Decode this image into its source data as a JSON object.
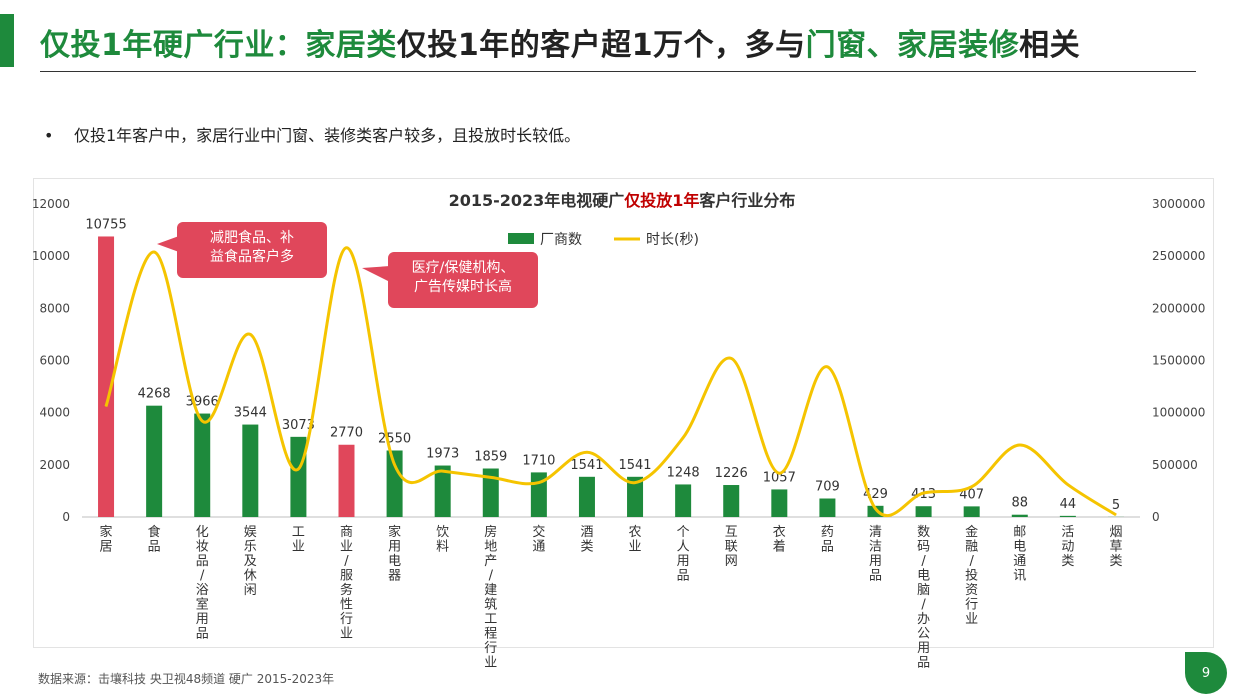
{
  "slide": {
    "title_parts": [
      "仅投1年硬广行业：",
      "家居类",
      "仅投1年的客户超1万个，多与",
      "门窗、家居装修",
      "相关"
    ],
    "bullet": "仅投1年客户中，家居行业中门窗、装修类客户较多，且投放时长较低。",
    "source": "数据来源：击壤科技 央卫视48频道 硬广 2015-2023年",
    "page_number": "9",
    "colors": {
      "accent": "#1e8a3c",
      "highlight": "#e0475b",
      "line": "#f5c400",
      "title_red": "#c00000"
    }
  },
  "chart_data": {
    "type": "bar",
    "title_parts": [
      "2015-2023年电视硬广",
      "仅投放1年",
      "客户行业分布"
    ],
    "categories": [
      "家居",
      "食品",
      "化妆品/浴室用品",
      "娱乐及休闲",
      "工业",
      "商业/服务性行业",
      "家用电器",
      "饮料",
      "房地产/建筑工程行业",
      "交通",
      "酒类",
      "农业",
      "个人用品",
      "互联网",
      "衣着",
      "药品",
      "清洁用品",
      "数码/电脑/办公用品",
      "金融/投资行业",
      "邮电通讯",
      "活动类",
      "烟草类"
    ],
    "series": [
      {
        "name": "厂商数",
        "type": "bar",
        "axis": "left",
        "values": [
          10755,
          4268,
          3966,
          3544,
          3073,
          2770,
          2550,
          1973,
          1859,
          1710,
          1541,
          1541,
          1248,
          1226,
          1057,
          709,
          429,
          413,
          407,
          88,
          44,
          5
        ],
        "highlight_indices": [
          0,
          5
        ]
      },
      {
        "name": "时长(秒)",
        "type": "line",
        "axis": "right",
        "values": [
          1060000,
          2540000,
          920000,
          1750000,
          460000,
          2580000,
          500000,
          440000,
          380000,
          330000,
          620000,
          330000,
          760000,
          1520000,
          420000,
          1440000,
          80000,
          230000,
          290000,
          690000,
          310000,
          20000
        ]
      }
    ],
    "y_left": {
      "min": 0,
      "max": 12000,
      "ticks": [
        0,
        2000,
        4000,
        6000,
        8000,
        10000,
        12000
      ]
    },
    "y_right": {
      "min": 0,
      "max": 3000000,
      "ticks": [
        0,
        500000,
        1000000,
        1500000,
        2000000,
        2500000,
        3000000
      ]
    },
    "legend_position": "top-center",
    "grid": false,
    "annotations": [
      {
        "text": "减肥食品、补益食品客户多",
        "points_to": "食品"
      },
      {
        "text": "医疗/保健机构、广告传媒时长高",
        "points_to": "商业/服务性行业"
      }
    ]
  }
}
